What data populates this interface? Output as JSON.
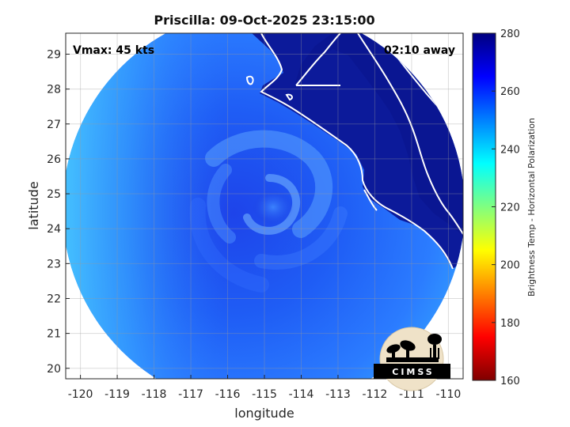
{
  "title": "Priscilla: 09-Oct-2025 23:15:00",
  "annotations": {
    "vmax": "Vmax: 45 kts",
    "time_away": "02:10 away"
  },
  "axes": {
    "xlabel": "longitude",
    "ylabel": "latitude",
    "x_ticks": [
      -120,
      -119,
      -118,
      -117,
      -116,
      -115,
      -114,
      -113,
      -112,
      -111,
      -110
    ],
    "y_ticks": [
      20,
      21,
      22,
      23,
      24,
      25,
      26,
      27,
      28,
      29
    ],
    "x_range": [
      -120.4,
      -109.6
    ],
    "y_range": [
      19.7,
      29.6
    ],
    "grid": true
  },
  "colorbar": {
    "label": "Brightness Temp - Horizontal Polarization",
    "ticks": [
      160,
      180,
      200,
      220,
      240,
      260,
      280
    ],
    "range": [
      160,
      280
    ],
    "colormap": [
      "#7f0000",
      "#ff0000",
      "#ff8000",
      "#ffff00",
      "#80ff80",
      "#00ffff",
      "#0080ff",
      "#0000ff",
      "#00007f"
    ]
  },
  "map": {
    "storm_center_lon": -115.0,
    "storm_center_lat": 24.7,
    "ocean_color": "#1f5cff",
    "land_color": "#0c1a9a",
    "coastline_color": "#ffffff"
  },
  "logo": {
    "text": "CIMSS"
  }
}
